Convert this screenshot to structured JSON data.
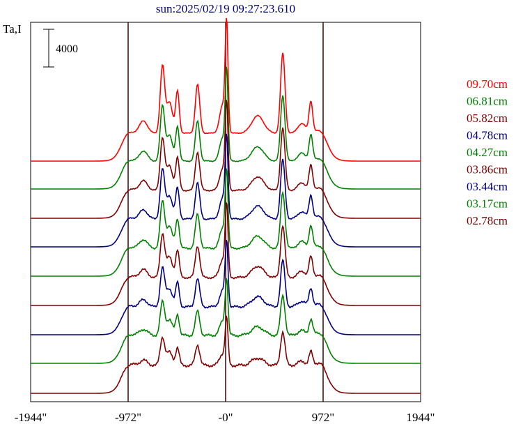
{
  "chart_data": {
    "type": "line",
    "title": "sun:2025/02/19 09:27:23.610",
    "ylabel": "Ta,I",
    "scale_bar_label": "4000",
    "x_ticks": [
      {
        "value": -1944,
        "label": "-1944\""
      },
      {
        "value": -972,
        "label": "-972\""
      },
      {
        "value": 0,
        "label": "-0\""
      },
      {
        "value": 972,
        "label": "972\""
      },
      {
        "value": 1944,
        "label": "1944\""
      }
    ],
    "xlim": [
      -1944,
      1944
    ],
    "vertical_lines": [
      -972,
      0,
      972
    ],
    "grid": false,
    "legend_position": "right",
    "series": [
      {
        "name": "09.70cm",
        "color": "#ff0000",
        "baseline": 231,
        "peak_scale": 1.0
      },
      {
        "name": "06.81cm",
        "color": "#008000",
        "baseline": 271,
        "peak_scale": 0.82
      },
      {
        "name": "05.82cm",
        "color": "#800000",
        "baseline": 313,
        "peak_scale": 0.78
      },
      {
        "name": "04.78cm",
        "color": "#000080",
        "baseline": 354,
        "peak_scale": 0.74
      },
      {
        "name": "04.27cm",
        "color": "#008000",
        "baseline": 396,
        "peak_scale": 0.7
      },
      {
        "name": "03.86cm",
        "color": "#800000",
        "baseline": 438,
        "peak_scale": 0.65
      },
      {
        "name": "03.44cm",
        "color": "#000080",
        "baseline": 480,
        "peak_scale": 0.58
      },
      {
        "name": "03.17cm",
        "color": "#008000",
        "baseline": 521,
        "peak_scale": 0.5
      },
      {
        "name": "02.78cm",
        "color": "#800000",
        "baseline": 564,
        "peak_scale": 0.42
      }
    ]
  }
}
